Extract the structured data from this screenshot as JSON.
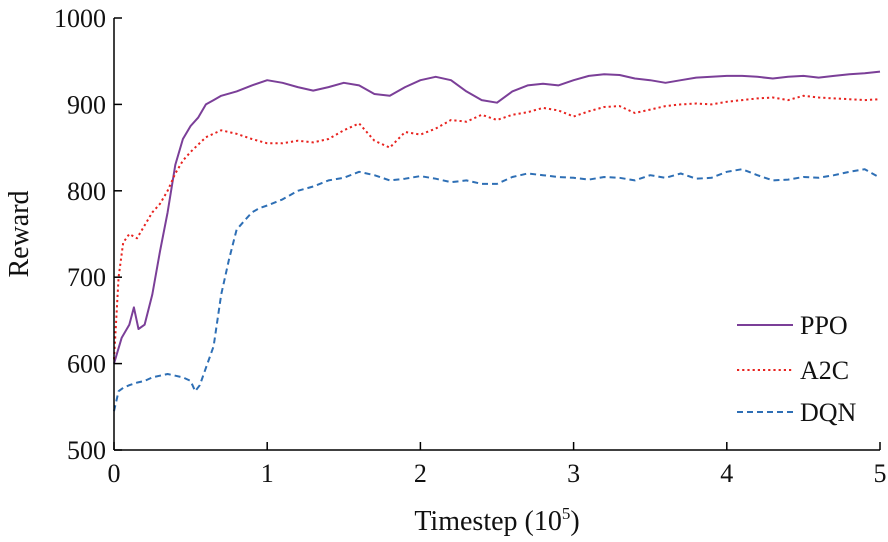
{
  "chart_data": {
    "type": "line",
    "xlabel": "Timestep (10",
    "xlabel_exponent": "5",
    "xlabel_suffix": ")",
    "ylabel": "Reward",
    "xlim": [
      0,
      5
    ],
    "ylim": [
      500,
      1000
    ],
    "xticks": [
      "0",
      "1",
      "2",
      "3",
      "4",
      "5"
    ],
    "yticks": [
      "500",
      "600",
      "700",
      "800",
      "900",
      "1000"
    ],
    "grid": false,
    "legend_position": "bottom-right",
    "series": [
      {
        "name": "PPO",
        "color": "#7b3f98",
        "style": "solid",
        "x": [
          0,
          0.05,
          0.1,
          0.13,
          0.16,
          0.2,
          0.25,
          0.3,
          0.35,
          0.4,
          0.45,
          0.5,
          0.55,
          0.6,
          0.65,
          0.7,
          0.8,
          0.9,
          1.0,
          1.1,
          1.2,
          1.3,
          1.4,
          1.5,
          1.6,
          1.7,
          1.8,
          1.9,
          2.0,
          2.1,
          2.2,
          2.3,
          2.4,
          2.5,
          2.6,
          2.7,
          2.8,
          2.9,
          3.0,
          3.1,
          3.2,
          3.3,
          3.4,
          3.5,
          3.6,
          3.7,
          3.8,
          3.9,
          4.0,
          4.1,
          4.2,
          4.3,
          4.4,
          4.5,
          4.6,
          4.7,
          4.8,
          4.9,
          5.0
        ],
        "y": [
          600,
          630,
          645,
          665,
          640,
          645,
          680,
          730,
          775,
          830,
          860,
          875,
          885,
          900,
          905,
          910,
          915,
          922,
          928,
          925,
          920,
          916,
          920,
          925,
          922,
          912,
          910,
          920,
          928,
          932,
          928,
          915,
          905,
          902,
          915,
          922,
          924,
          922,
          928,
          933,
          935,
          934,
          930,
          928,
          925,
          928,
          931,
          932,
          933,
          933,
          932,
          930,
          932,
          933,
          931,
          933,
          935,
          936,
          938
        ]
      },
      {
        "name": "A2C",
        "color": "#e8231f",
        "style": "dotted",
        "x": [
          0,
          0.03,
          0.06,
          0.1,
          0.15,
          0.2,
          0.25,
          0.3,
          0.35,
          0.4,
          0.45,
          0.5,
          0.6,
          0.7,
          0.8,
          0.9,
          1.0,
          1.1,
          1.2,
          1.3,
          1.4,
          1.5,
          1.6,
          1.7,
          1.8,
          1.9,
          2.0,
          2.1,
          2.2,
          2.3,
          2.4,
          2.5,
          2.6,
          2.7,
          2.8,
          2.9,
          3.0,
          3.1,
          3.2,
          3.3,
          3.4,
          3.5,
          3.6,
          3.7,
          3.8,
          3.9,
          4.0,
          4.1,
          4.2,
          4.3,
          4.4,
          4.5,
          4.6,
          4.7,
          4.8,
          4.9,
          5.0
        ],
        "y": [
          605,
          700,
          740,
          750,
          745,
          760,
          775,
          785,
          800,
          820,
          835,
          845,
          862,
          870,
          866,
          860,
          855,
          855,
          858,
          856,
          860,
          870,
          878,
          858,
          850,
          868,
          865,
          872,
          882,
          880,
          888,
          882,
          888,
          891,
          896,
          893,
          886,
          892,
          897,
          898,
          890,
          894,
          898,
          900,
          901,
          900,
          903,
          905,
          907,
          908,
          905,
          910,
          908,
          907,
          906,
          905,
          906
        ]
      },
      {
        "name": "DQN",
        "color": "#2e6fb5",
        "style": "dashed",
        "x": [
          0,
          0.03,
          0.06,
          0.1,
          0.15,
          0.2,
          0.25,
          0.3,
          0.35,
          0.4,
          0.45,
          0.5,
          0.53,
          0.56,
          0.6,
          0.65,
          0.7,
          0.75,
          0.8,
          0.85,
          0.9,
          0.95,
          1.0,
          1.1,
          1.2,
          1.3,
          1.4,
          1.5,
          1.6,
          1.7,
          1.8,
          1.9,
          2.0,
          2.1,
          2.2,
          2.3,
          2.4,
          2.5,
          2.6,
          2.7,
          2.8,
          2.9,
          3.0,
          3.1,
          3.2,
          3.3,
          3.4,
          3.5,
          3.6,
          3.7,
          3.8,
          3.9,
          4.0,
          4.1,
          4.2,
          4.3,
          4.4,
          4.5,
          4.6,
          4.7,
          4.8,
          4.9,
          5.0
        ],
        "y": [
          545,
          568,
          572,
          575,
          578,
          580,
          584,
          586,
          588,
          586,
          584,
          580,
          568,
          575,
          595,
          620,
          680,
          720,
          755,
          765,
          775,
          780,
          783,
          790,
          800,
          805,
          812,
          815,
          822,
          818,
          812,
          814,
          817,
          814,
          810,
          812,
          808,
          808,
          816,
          820,
          818,
          816,
          815,
          813,
          816,
          815,
          812,
          818,
          815,
          820,
          814,
          815,
          822,
          825,
          818,
          812,
          813,
          816,
          815,
          818,
          822,
          825,
          815
        ]
      }
    ]
  }
}
